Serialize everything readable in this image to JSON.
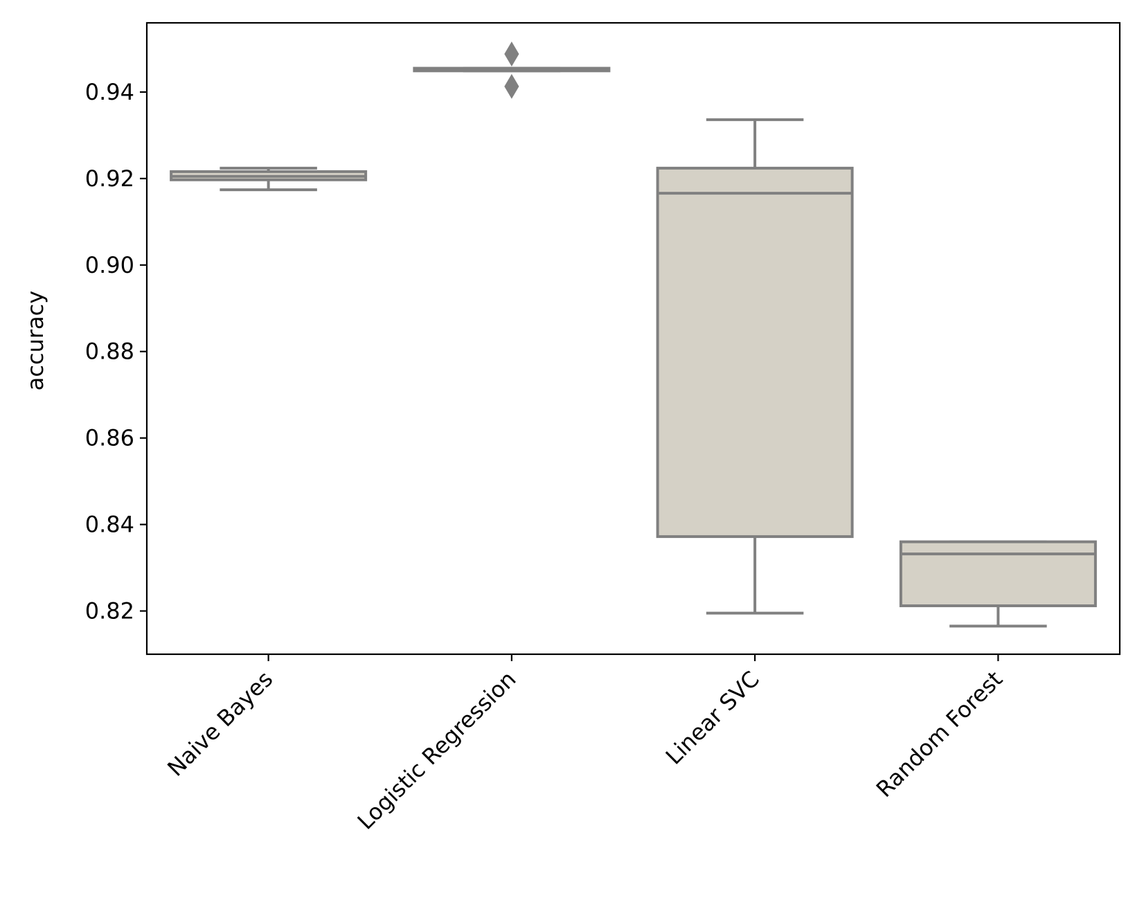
{
  "chart_data": {
    "type": "box",
    "title": "",
    "xlabel": "",
    "ylabel": "accuracy",
    "ylim": [
      0.81,
      0.956
    ],
    "yticks": [
      0.82,
      0.84,
      0.86,
      0.88,
      0.9,
      0.92,
      0.94
    ],
    "ytick_labels": [
      "0.82",
      "0.84",
      "0.86",
      "0.88",
      "0.90",
      "0.92",
      "0.94"
    ],
    "categories": [
      "Naive Bayes",
      "Logistic Regression",
      "Linear SVC",
      "Random Forest"
    ],
    "boxes": [
      {
        "name": "Naive Bayes",
        "whisker_low": 0.9174,
        "q1": 0.9197,
        "median": 0.9205,
        "q3": 0.9216,
        "whisker_high": 0.9224,
        "outliers": []
      },
      {
        "name": "Logistic Regression",
        "whisker_low": 0.9449,
        "q1": 0.9449,
        "median": 0.9452,
        "q3": 0.9455,
        "whisker_high": 0.9455,
        "outliers": [
          0.9413,
          0.9488
        ]
      },
      {
        "name": "Linear SVC",
        "whisker_low": 0.8195,
        "q1": 0.8372,
        "median": 0.9166,
        "q3": 0.9224,
        "whisker_high": 0.9336,
        "outliers": []
      },
      {
        "name": "Random Forest",
        "whisker_low": 0.8165,
        "q1": 0.8212,
        "median": 0.8332,
        "q3": 0.836,
        "whisker_high": 0.836,
        "outliers": []
      }
    ],
    "colors": {
      "box_fill": "#d5d1c6",
      "line": "#808080",
      "axis": "#000000"
    }
  }
}
